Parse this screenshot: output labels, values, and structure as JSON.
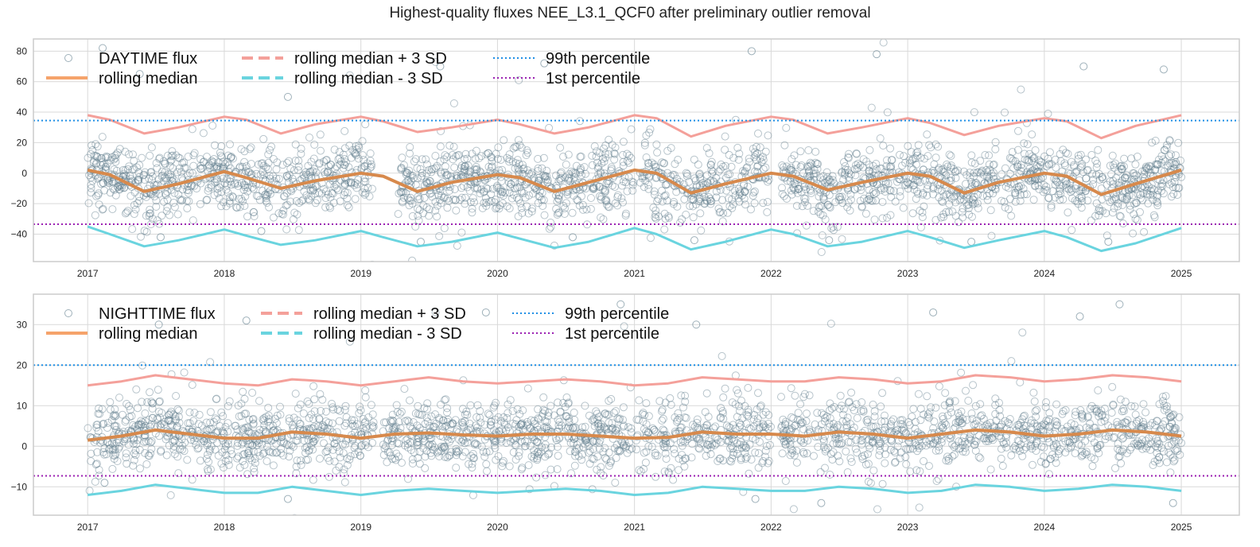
{
  "figure": {
    "title": "Highest-quality fluxes NEE_L3.1_QCF0 after preliminary outlier removal"
  },
  "colors": {
    "scatter": "#5f7d8c",
    "median": "#f5a36b",
    "median_dark": "#d7894c",
    "upper_band": "#f4a09a",
    "lower_band": "#6ad4df",
    "p99": "#1f8fe5",
    "p1": "#9b1fb2",
    "grid": "#d9d9d9",
    "frame": "#cccccc"
  },
  "chart_data": [
    {
      "type": "scatter",
      "title": "",
      "xlabel": "",
      "ylabel": "",
      "x_type": "date",
      "xlim": [
        "2016-08-09",
        "2025-06-05"
      ],
      "ylim": [
        -58,
        88
      ],
      "x_ticks": [
        "2017",
        "2018",
        "2019",
        "2020",
        "2021",
        "2022",
        "2023",
        "2024",
        "2025"
      ],
      "y_ticks": [
        -40,
        -20,
        0,
        20,
        40,
        60,
        80
      ],
      "grid": true,
      "legend_position": "top-left",
      "legend_columns": 3,
      "legend": [
        {
          "label": "DAYTIME flux",
          "style": "open-circle"
        },
        {
          "label": "rolling median",
          "style": "solid-line"
        },
        {
          "label": "rolling median + 3 SD",
          "style": "dashed-line-upper"
        },
        {
          "label": "rolling median - 3 SD",
          "style": "dashed-line-lower"
        },
        {
          "label": "99th percentile",
          "style": "dotted-p99"
        },
        {
          "label": "1st percentile",
          "style": "dotted-p1"
        }
      ],
      "percentile_99": 34.5,
      "percentile_1": -33.5,
      "gaps": [
        [
          "2019-02-01",
          "2019-04-10"
        ],
        [
          "2020-12-30",
          "2021-01-15"
        ],
        [
          "2021-12-28",
          "2022-01-30"
        ]
      ],
      "series": [
        {
          "name": "rolling median",
          "x": [
            "2017-01-01",
            "2017-03-01",
            "2017-06-01",
            "2017-09-01",
            "2018-01-01",
            "2018-03-01",
            "2018-06-01",
            "2018-09-01",
            "2019-01-01",
            "2019-03-01",
            "2019-06-01",
            "2019-09-01",
            "2020-01-01",
            "2020-03-01",
            "2020-06-01",
            "2020-09-01",
            "2021-01-01",
            "2021-03-01",
            "2021-06-01",
            "2021-09-01",
            "2022-01-01",
            "2022-03-01",
            "2022-06-01",
            "2022-09-01",
            "2023-01-01",
            "2023-03-01",
            "2023-06-01",
            "2023-09-01",
            "2024-01-01",
            "2024-03-01",
            "2024-06-01",
            "2024-09-01",
            "2025-01-01"
          ],
          "y": [
            2,
            -1,
            -12,
            -7,
            1,
            -3,
            -10,
            -5,
            0,
            -2,
            -12,
            -6,
            -1,
            -3,
            -12,
            -6,
            2,
            0,
            -13,
            -7,
            0,
            -2,
            -11,
            -6,
            0,
            -2,
            -13,
            -6,
            0,
            -2,
            -14,
            -7,
            2
          ]
        },
        {
          "name": "rolling median + 3 SD",
          "x": [
            "2017-01-01",
            "2017-03-01",
            "2017-06-01",
            "2017-09-01",
            "2018-01-01",
            "2018-03-01",
            "2018-06-01",
            "2018-09-01",
            "2019-01-01",
            "2019-03-01",
            "2019-06-01",
            "2019-09-01",
            "2020-01-01",
            "2020-03-01",
            "2020-06-01",
            "2020-09-01",
            "2021-01-01",
            "2021-03-01",
            "2021-06-01",
            "2021-09-01",
            "2022-01-01",
            "2022-03-01",
            "2022-06-01",
            "2022-09-01",
            "2023-01-01",
            "2023-03-01",
            "2023-06-01",
            "2023-09-01",
            "2024-01-01",
            "2024-03-01",
            "2024-06-01",
            "2024-09-01",
            "2025-01-01"
          ],
          "y": [
            38,
            35,
            26,
            30,
            37,
            35,
            26,
            32,
            37,
            34,
            27,
            30,
            35,
            32,
            26,
            30,
            38,
            36,
            24,
            31,
            37,
            35,
            26,
            30,
            36,
            33,
            25,
            31,
            36,
            34,
            23,
            31,
            38
          ]
        },
        {
          "name": "rolling median - 3 SD",
          "x": [
            "2017-01-01",
            "2017-03-01",
            "2017-06-01",
            "2017-09-01",
            "2018-01-01",
            "2018-03-01",
            "2018-06-01",
            "2018-09-01",
            "2019-01-01",
            "2019-03-01",
            "2019-06-01",
            "2019-09-01",
            "2020-01-01",
            "2020-03-01",
            "2020-06-01",
            "2020-09-01",
            "2021-01-01",
            "2021-03-01",
            "2021-06-01",
            "2021-09-01",
            "2022-01-01",
            "2022-03-01",
            "2022-06-01",
            "2022-09-01",
            "2023-01-01",
            "2023-03-01",
            "2023-06-01",
            "2023-09-01",
            "2024-01-01",
            "2024-03-01",
            "2024-06-01",
            "2024-09-01",
            "2025-01-01"
          ],
          "y": [
            -35,
            -40,
            -48,
            -44,
            -37,
            -41,
            -47,
            -44,
            -38,
            -42,
            -48,
            -45,
            -39,
            -43,
            -49,
            -45,
            -36,
            -40,
            -50,
            -45,
            -37,
            -40,
            -48,
            -45,
            -38,
            -42,
            -49,
            -44,
            -38,
            -42,
            -51,
            -46,
            -36
          ]
        },
        {
          "name": "DAYTIME flux",
          "summary": "dense open-circle scatter around the rolling median",
          "x": [
            "2017-02-10",
            "2017-05-20",
            "2017-07-15",
            "2018-04-10",
            "2018-06-20",
            "2019-06-10",
            "2019-08-01",
            "2020-05-05",
            "2020-07-20",
            "2020-11-20",
            "2021-06-10",
            "2021-11-10",
            "2022-06-05",
            "2022-10-10",
            "2023-06-20",
            "2024-04-15",
            "2024-06-20",
            "2024-11-15"
          ],
          "y": [
            82,
            65,
            -42,
            -38,
            50,
            -45,
            70,
            72,
            -42,
            75,
            -44,
            80,
            -44,
            78,
            -45,
            70,
            -45,
            68
          ]
        }
      ]
    },
    {
      "type": "scatter",
      "title": "",
      "xlabel": "",
      "ylabel": "",
      "x_type": "date",
      "xlim": [
        "2016-08-09",
        "2025-06-05"
      ],
      "ylim": [
        -17,
        37.5
      ],
      "x_ticks": [
        "2017",
        "2018",
        "2019",
        "2020",
        "2021",
        "2022",
        "2023",
        "2024",
        "2025"
      ],
      "y_ticks": [
        -10,
        0,
        10,
        20,
        30
      ],
      "grid": true,
      "legend_position": "top-left",
      "legend_columns": 3,
      "legend": [
        {
          "label": "NIGHTTIME flux",
          "style": "open-circle"
        },
        {
          "label": "rolling median",
          "style": "solid-line"
        },
        {
          "label": "rolling median + 3 SD",
          "style": "dashed-line-upper"
        },
        {
          "label": "rolling median - 3 SD",
          "style": "dashed-line-lower"
        },
        {
          "label": "99th percentile",
          "style": "dotted-p99"
        },
        {
          "label": "1st percentile",
          "style": "dotted-p1"
        }
      ],
      "percentile_99": 20,
      "percentile_1": -7.3,
      "gaps": [
        [
          "2019-02-05",
          "2019-03-01"
        ],
        [
          "2020-12-25",
          "2021-01-05"
        ],
        [
          "2022-01-05",
          "2022-01-25"
        ]
      ],
      "series": [
        {
          "name": "rolling median",
          "x": [
            "2017-01-01",
            "2017-04-01",
            "2017-07-01",
            "2017-10-01",
            "2018-01-01",
            "2018-04-01",
            "2018-07-01",
            "2018-10-01",
            "2019-01-01",
            "2019-04-01",
            "2019-07-01",
            "2019-10-01",
            "2020-01-01",
            "2020-04-01",
            "2020-07-01",
            "2020-10-01",
            "2021-01-01",
            "2021-04-01",
            "2021-07-01",
            "2021-10-01",
            "2022-01-01",
            "2022-04-01",
            "2022-07-01",
            "2022-10-01",
            "2023-01-01",
            "2023-04-01",
            "2023-07-01",
            "2023-10-01",
            "2024-01-01",
            "2024-04-01",
            "2024-07-01",
            "2024-10-01",
            "2025-01-01"
          ],
          "y": [
            1.5,
            2.5,
            4,
            3,
            2,
            2,
            3.5,
            3,
            2,
            3,
            3.3,
            2.8,
            2.5,
            3,
            3,
            2.5,
            2,
            2.2,
            3.5,
            3,
            3,
            2.5,
            3.5,
            3,
            2,
            3,
            4,
            3.5,
            2.5,
            3,
            4,
            3.5,
            2.5
          ]
        },
        {
          "name": "rolling median + 3 SD",
          "x": [
            "2017-01-01",
            "2017-04-01",
            "2017-07-01",
            "2017-10-01",
            "2018-01-01",
            "2018-04-01",
            "2018-07-01",
            "2018-10-01",
            "2019-01-01",
            "2019-04-01",
            "2019-07-01",
            "2019-10-01",
            "2020-01-01",
            "2020-04-01",
            "2020-07-01",
            "2020-10-01",
            "2021-01-01",
            "2021-04-01",
            "2021-07-01",
            "2021-10-01",
            "2022-01-01",
            "2022-04-01",
            "2022-07-01",
            "2022-10-01",
            "2023-01-01",
            "2023-04-01",
            "2023-07-01",
            "2023-10-01",
            "2024-01-01",
            "2024-04-01",
            "2024-07-01",
            "2024-10-01",
            "2025-01-01"
          ],
          "y": [
            15,
            16,
            17.5,
            16.5,
            15.5,
            15,
            16.5,
            16,
            15,
            16,
            17,
            16,
            15.5,
            16,
            16.5,
            16,
            15,
            15.5,
            17,
            16.5,
            16,
            16,
            17,
            16.5,
            15.5,
            16,
            17.5,
            17,
            16,
            16.5,
            17.5,
            17,
            16
          ]
        },
        {
          "name": "rolling median - 3 SD",
          "x": [
            "2017-01-01",
            "2017-04-01",
            "2017-07-01",
            "2017-10-01",
            "2018-01-01",
            "2018-04-01",
            "2018-07-01",
            "2018-10-01",
            "2019-01-01",
            "2019-04-01",
            "2019-07-01",
            "2019-10-01",
            "2020-01-01",
            "2020-04-01",
            "2020-07-01",
            "2020-10-01",
            "2021-01-01",
            "2021-04-01",
            "2021-07-01",
            "2021-10-01",
            "2022-01-01",
            "2022-04-01",
            "2022-07-01",
            "2022-10-01",
            "2023-01-01",
            "2023-04-01",
            "2023-07-01",
            "2023-10-01",
            "2024-01-01",
            "2024-04-01",
            "2024-07-01",
            "2024-10-01",
            "2025-01-01"
          ],
          "y": [
            -12,
            -11,
            -9.5,
            -10.5,
            -11.5,
            -11.5,
            -10,
            -11,
            -12,
            -11,
            -10.5,
            -11,
            -11.5,
            -11,
            -10.5,
            -11,
            -12,
            -11.5,
            -10,
            -10.5,
            -11,
            -11,
            -10,
            -10.5,
            -11.5,
            -11,
            -9.5,
            -10,
            -11,
            -10.5,
            -9.5,
            -10,
            -11
          ]
        },
        {
          "name": "NIGHTTIME flux",
          "summary": "dense open-circle scatter around the rolling median",
          "x": [
            "2017-02-15",
            "2017-07-10",
            "2018-03-01",
            "2018-06-20",
            "2019-12-01",
            "2020-11-25",
            "2021-06-15",
            "2021-11-20",
            "2022-05-15",
            "2023-03-10",
            "2024-04-05",
            "2024-07-20",
            "2024-12-10"
          ],
          "y": [
            -9,
            30,
            31,
            -13,
            33,
            35,
            30,
            -13,
            -14,
            33,
            32,
            35,
            -14
          ]
        }
      ]
    }
  ]
}
